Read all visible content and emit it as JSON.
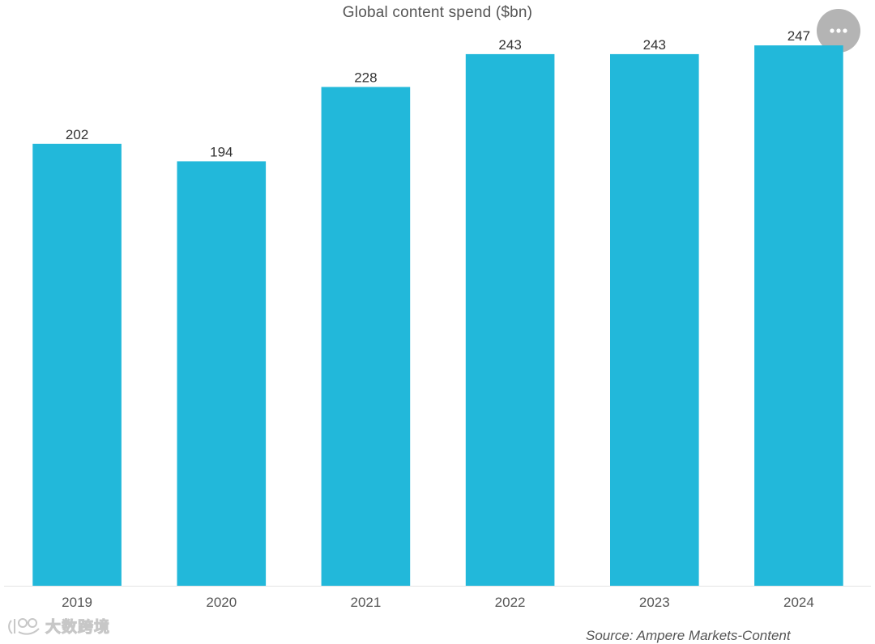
{
  "chart_data": {
    "type": "bar",
    "title": "Global content spend ($bn)",
    "categories": [
      "2019",
      "2020",
      "2021",
      "2022",
      "2023",
      "2024"
    ],
    "values": [
      202,
      194,
      228,
      243,
      243,
      247
    ],
    "data_labels": [
      "202",
      "194",
      "228",
      "243",
      "243",
      "247"
    ],
    "bar_color": "#22b8da",
    "ylim": [
      0,
      250
    ],
    "y_axis_visible": false,
    "grid": false,
    "legend": "none",
    "source": "Source: Ampere Markets-Content"
  },
  "menu": {
    "icon": "ellipsis-icon",
    "color": "#b4b4b4"
  },
  "watermark": {
    "text": "大数跨境",
    "icon": "logo-icon"
  }
}
